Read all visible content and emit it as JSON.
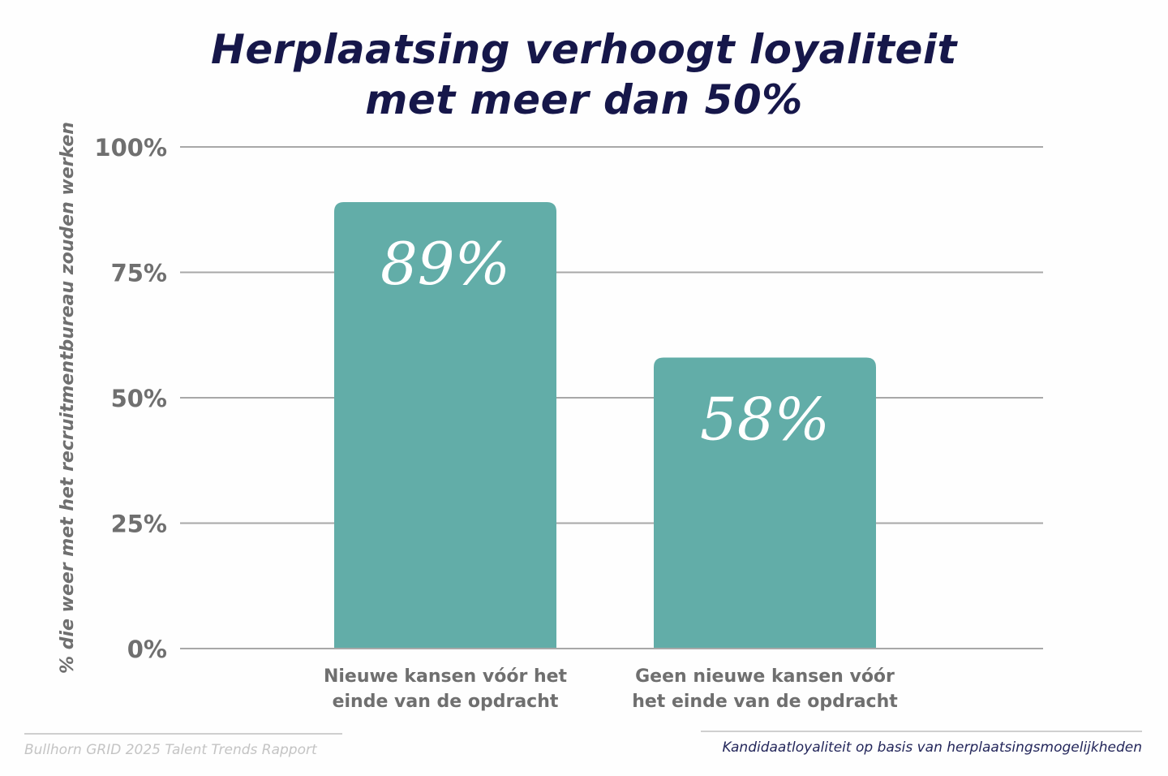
{
  "chart_data": {
    "type": "bar",
    "title": [
      "Herplaatsing verhoogt loyaliteit",
      "met meer dan 50%"
    ],
    "ylabel": "% die weer met het recruitmentbureau zouden werken",
    "xlabel": "",
    "categories": [
      [
        "Nieuwe kansen vóór het",
        "einde van de opdracht"
      ],
      [
        "Geen nieuwe kansen vóór",
        "het einde van de opdracht"
      ]
    ],
    "values": [
      89,
      58
    ],
    "data_labels": [
      "89%",
      "58%"
    ],
    "ylim": [
      0,
      100
    ],
    "yticks": [
      0,
      25,
      50,
      75,
      100
    ],
    "ytick_labels": [
      "0%",
      "25%",
      "50%",
      "75%",
      "100%"
    ],
    "grid": true,
    "legend": "none",
    "colors": {
      "bar": "#62ada8",
      "title": "#16174a",
      "grid": "#a8a8a8",
      "axis_text": "#6f6f6f"
    }
  },
  "footer": {
    "source": "Bullhorn GRID 2025 Talent Trends Rapport",
    "caption": "Kandidaatloyaliteit op basis van herplaatsingsmogelijkheden"
  }
}
